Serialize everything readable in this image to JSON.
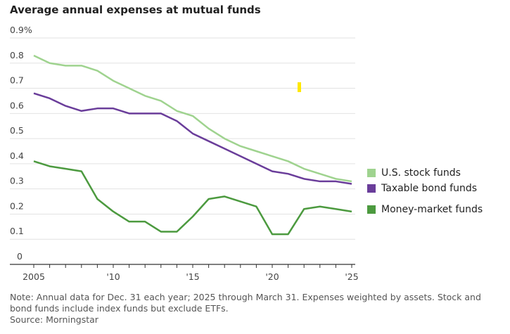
{
  "chart_data": {
    "type": "line",
    "title": "Average annual expenses at mutual funds",
    "x": [
      2005,
      2006,
      2007,
      2008,
      2009,
      2010,
      2011,
      2012,
      2013,
      2014,
      2015,
      2016,
      2017,
      2018,
      2019,
      2020,
      2021,
      2022,
      2023,
      2024,
      2025
    ],
    "xtick_labels": [
      "2005",
      "'10",
      "'15",
      "'20",
      "'25"
    ],
    "ytick_labels": [
      "0",
      "0.1",
      "0.2",
      "0.3",
      "0.4",
      "0.5",
      "0.6",
      "0.7",
      "0.8",
      "0.9%"
    ],
    "ylim": [
      0,
      0.9
    ],
    "grid": true,
    "legend": "right",
    "series": [
      {
        "name": "U.S. stock funds",
        "color": "#9fd38f",
        "values": [
          0.83,
          0.8,
          0.79,
          0.79,
          0.77,
          0.73,
          0.7,
          0.67,
          0.65,
          0.61,
          0.59,
          0.54,
          0.5,
          0.47,
          0.45,
          0.43,
          0.41,
          0.38,
          0.36,
          0.34,
          0.33
        ]
      },
      {
        "name": "Taxable bond funds",
        "color": "#6a3d9a",
        "values": [
          0.68,
          0.66,
          0.63,
          0.61,
          0.62,
          0.62,
          0.6,
          0.6,
          0.6,
          0.57,
          0.52,
          0.49,
          0.46,
          0.43,
          0.4,
          0.37,
          0.36,
          0.34,
          0.33,
          0.33,
          0.32
        ]
      },
      {
        "name": "Money-market funds",
        "color": "#4c9a3f",
        "values": [
          0.41,
          0.39,
          0.38,
          0.37,
          0.26,
          0.21,
          0.17,
          0.17,
          0.13,
          0.13,
          0.19,
          0.26,
          0.27,
          0.25,
          0.23,
          0.12,
          0.12,
          0.22,
          0.23,
          0.22,
          0.21
        ]
      }
    ]
  },
  "note": "Note: Annual data for Dec. 31 each year; 2025 through March 31. Expenses weighted by assets. Stock and bond funds include index funds but exclude ETFs.",
  "source": "Source: Morningstar"
}
